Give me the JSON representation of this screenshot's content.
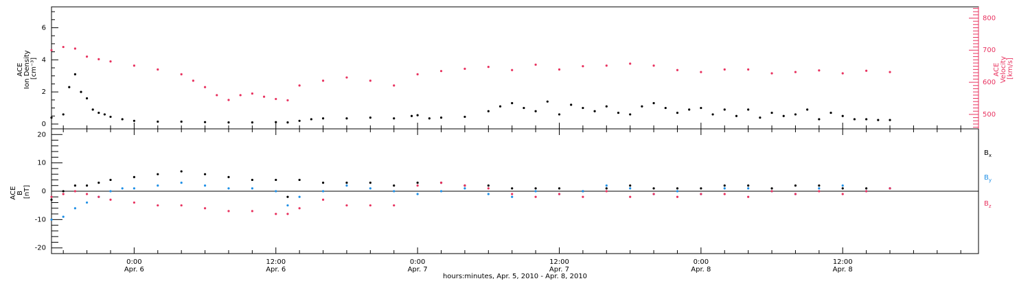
{
  "colors": {
    "black": "#000000",
    "pink": "#e8325f",
    "blue": "#1e8fe6"
  },
  "x_axis": {
    "title": "hours:minutes, Apr. 5, 2010 - Apr. 8, 2010",
    "ticks": [
      {
        "hours": 24,
        "line1": "0:00",
        "line2": "Apr. 6"
      },
      {
        "hours": 36,
        "line1": "12:00",
        "line2": "Apr. 6"
      },
      {
        "hours": 48,
        "line1": "0:00",
        "line2": "Apr. 7"
      },
      {
        "hours": 60,
        "line1": "12:00",
        "line2": "Apr. 7"
      },
      {
        "hours": 72,
        "line1": "0:00",
        "line2": "Apr. 8"
      },
      {
        "hours": 84,
        "line1": "12:00",
        "line2": "Apr. 8"
      }
    ]
  },
  "chart_data": [
    {
      "type": "scatter",
      "panel": "top",
      "xlim_hours": [
        17,
        95.5
      ],
      "left_axis": {
        "label_lines": [
          "ACE",
          "Ion Density",
          "[cm⁻³]"
        ],
        "ylim": [
          -0.3,
          7.3
        ],
        "ticks": [
          "0",
          "2",
          "4",
          "6"
        ],
        "tick_values": [
          0,
          2,
          4,
          6
        ]
      },
      "right_axis": {
        "label_lines": [
          "ACE",
          "Velocity",
          "[km/s]"
        ],
        "ylim": [
          455,
          835
        ],
        "ticks": [
          "500",
          "600",
          "700",
          "800"
        ],
        "tick_values": [
          500,
          600,
          700,
          800
        ]
      },
      "series": [
        {
          "name": "Ion Density",
          "axis": "left",
          "color": "#000000",
          "x": [
            17.0,
            18.0,
            18.5,
            19.0,
            19.5,
            20.0,
            20.5,
            21.0,
            21.5,
            22.0,
            23.0,
            24.0,
            26.0,
            28.0,
            30.0,
            32.0,
            34.0,
            36.0,
            37.0,
            38.0,
            39.0,
            40.0,
            42.0,
            44.0,
            46.0,
            47.5,
            48.0,
            49.0,
            50.0,
            52.0,
            54.0,
            55.0,
            56.0,
            57.0,
            58.0,
            59.0,
            60.0,
            61.0,
            62.0,
            63.0,
            64.0,
            65.0,
            66.0,
            67.0,
            68.0,
            69.0,
            70.0,
            71.0,
            72.0,
            73.0,
            74.0,
            75.0,
            76.0,
            77.0,
            78.0,
            79.0,
            80.0,
            81.0,
            82.0,
            83.0,
            84.0,
            85.0,
            86.0,
            87.0,
            88.0
          ],
          "y": [
            0.4,
            0.6,
            2.3,
            3.1,
            2.0,
            1.6,
            0.9,
            0.7,
            0.6,
            0.45,
            0.3,
            0.2,
            0.15,
            0.15,
            0.12,
            0.1,
            0.1,
            0.12,
            0.1,
            0.2,
            0.3,
            0.35,
            0.35,
            0.4,
            0.35,
            0.5,
            0.55,
            0.35,
            0.4,
            0.45,
            0.8,
            1.1,
            1.3,
            1.0,
            0.8,
            1.4,
            0.6,
            1.2,
            1.0,
            0.8,
            1.1,
            0.7,
            0.6,
            1.1,
            1.3,
            1.0,
            0.7,
            0.9,
            1.0,
            0.6,
            0.9,
            0.5,
            0.9,
            0.4,
            0.7,
            0.5,
            0.6,
            0.9,
            0.3,
            0.7,
            0.5,
            0.3,
            0.3,
            0.25,
            0.25
          ]
        },
        {
          "name": "Velocity",
          "axis": "right",
          "color": "#e8325f",
          "x": [
            17.0,
            18.0,
            19.0,
            20.0,
            21.0,
            22.0,
            24.0,
            26.0,
            28.0,
            29.0,
            30.0,
            31.0,
            32.0,
            33.0,
            34.0,
            35.0,
            36.0,
            37.0,
            38.0,
            40.0,
            42.0,
            44.0,
            46.0,
            48.0,
            50.0,
            52.0,
            54.0,
            56.0,
            58.0,
            60.0,
            62.0,
            64.0,
            66.0,
            68.0,
            70.0,
            72.0,
            74.0,
            76.0,
            78.0,
            80.0,
            82.0,
            84.0,
            86.0,
            88.0
          ],
          "y": [
            700,
            710,
            705,
            680,
            672,
            665,
            652,
            640,
            625,
            605,
            585,
            560,
            545,
            560,
            565,
            555,
            548,
            544,
            590,
            605,
            615,
            605,
            590,
            625,
            635,
            642,
            648,
            638,
            655,
            640,
            650,
            652,
            658,
            652,
            638,
            632,
            640,
            640,
            628,
            632,
            637,
            628,
            636,
            632
          ]
        }
      ]
    },
    {
      "type": "scatter",
      "panel": "bottom",
      "xlim_hours": [
        17,
        95.5
      ],
      "left_axis": {
        "label_lines": [
          "ACE",
          "B",
          "[nT]"
        ],
        "ylim": [
          -22,
          22
        ],
        "ticks": [
          "-20",
          "-10",
          "0",
          "10",
          "20"
        ],
        "tick_values": [
          -20,
          -10,
          0,
          10,
          20
        ]
      },
      "legend": [
        "Bx",
        "By",
        "Bz"
      ],
      "series": [
        {
          "name": "Bx",
          "color": "#000000",
          "x": [
            17.0,
            18.0,
            19.0,
            20.0,
            21.0,
            22.0,
            24.0,
            26.0,
            28.0,
            30.0,
            32.0,
            34.0,
            36.0,
            37.0,
            38.0,
            40.0,
            42.0,
            44.0,
            46.0,
            48.0,
            50.0,
            52.0,
            54.0,
            56.0,
            58.0,
            60.0,
            62.0,
            64.0,
            66.0,
            68.0,
            70.0,
            72.0,
            74.0,
            76.0,
            78.0,
            80.0,
            82.0,
            84.0,
            86.0,
            88.0
          ],
          "y": [
            -3,
            0,
            2,
            2,
            3,
            4,
            5,
            6,
            7,
            6,
            5,
            4,
            4,
            -2,
            4,
            3,
            3,
            3,
            2,
            3,
            3,
            2,
            2,
            1,
            1,
            1,
            0,
            1,
            2,
            1,
            1,
            1,
            2,
            2,
            1,
            2,
            2,
            1,
            1,
            1
          ]
        },
        {
          "name": "By",
          "color": "#1e8fe6",
          "x": [
            17.0,
            18.0,
            19.0,
            20.0,
            21.0,
            22.0,
            23.0,
            24.0,
            26.0,
            28.0,
            30.0,
            32.0,
            34.0,
            36.0,
            37.0,
            38.0,
            40.0,
            42.0,
            44.0,
            46.0,
            48.0,
            50.0,
            52.0,
            54.0,
            56.0,
            58.0,
            60.0,
            62.0,
            64.0,
            66.0,
            68.0,
            70.0,
            72.0,
            74.0,
            76.0,
            78.0,
            80.0,
            82.0,
            84.0,
            86.0,
            88.0
          ],
          "y": [
            -10,
            -9,
            -6,
            -4,
            -2,
            0,
            1,
            1,
            2,
            3,
            2,
            1,
            1,
            0,
            -5,
            -2,
            0,
            2,
            1,
            0,
            -1,
            0,
            1,
            -1,
            -2,
            0,
            -1,
            0,
            2,
            1,
            -1,
            0,
            -1,
            1,
            1,
            0,
            -1,
            1,
            2,
            0,
            1
          ]
        },
        {
          "name": "Bz",
          "color": "#e8325f",
          "x": [
            17.0,
            18.0,
            19.0,
            20.0,
            21.0,
            22.0,
            24.0,
            26.0,
            28.0,
            30.0,
            32.0,
            34.0,
            36.0,
            37.0,
            38.0,
            40.0,
            42.0,
            44.0,
            46.0,
            48.0,
            50.0,
            52.0,
            54.0,
            56.0,
            58.0,
            60.0,
            62.0,
            64.0,
            66.0,
            68.0,
            70.0,
            72.0,
            74.0,
            76.0,
            78.0,
            80.0,
            82.0,
            84.0,
            86.0,
            88.0
          ],
          "y": [
            -2,
            -1,
            0,
            -1,
            -2,
            -3,
            -4,
            -5,
            -5,
            -6,
            -7,
            -7,
            -8,
            -8,
            -6,
            -3,
            -5,
            -5,
            -5,
            2,
            3,
            2,
            1,
            -1,
            -2,
            -1,
            -2,
            0,
            -2,
            -1,
            -2,
            -1,
            -1,
            -2,
            0,
            -1,
            0,
            -1,
            0,
            1
          ]
        }
      ]
    }
  ]
}
